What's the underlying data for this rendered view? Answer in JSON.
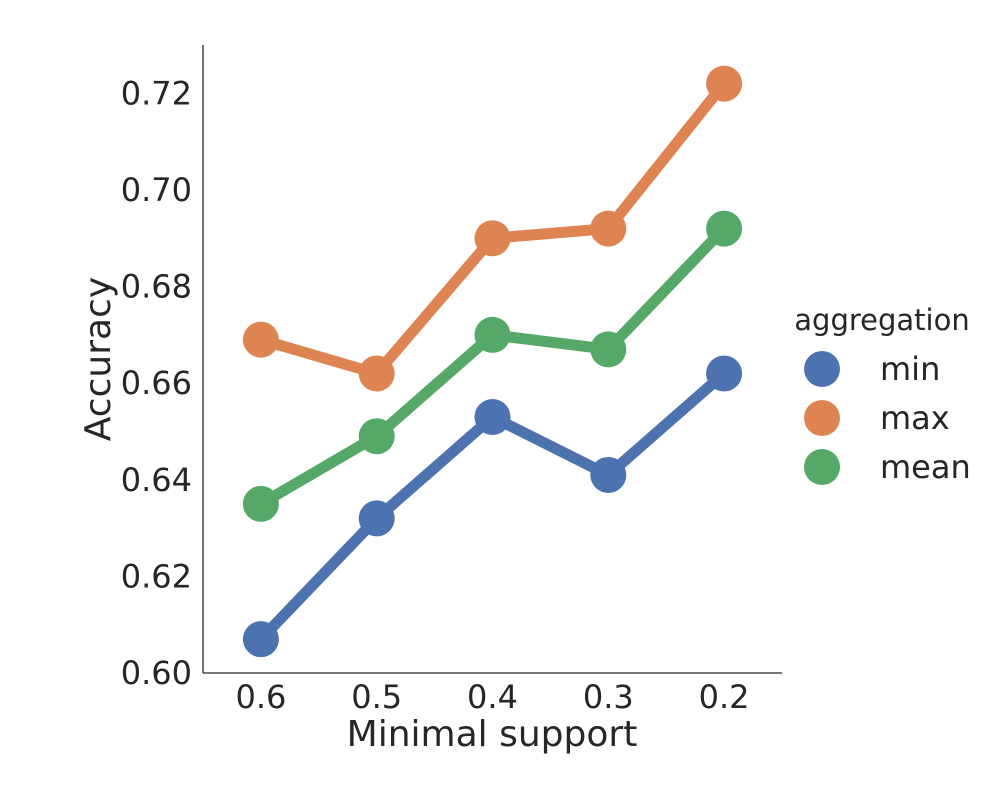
{
  "chart_data": {
    "type": "line",
    "title": "",
    "xlabel": "Minimal support",
    "ylabel": "Accuracy",
    "categories": [
      "0.6",
      "0.5",
      "0.4",
      "0.3",
      "0.2"
    ],
    "ylim": [
      0.6,
      0.73
    ],
    "yticks": [
      "0.60",
      "0.62",
      "0.64",
      "0.66",
      "0.68",
      "0.70",
      "0.72"
    ],
    "grid": false,
    "legend": {
      "title": "aggregation",
      "placement": "right"
    },
    "series": [
      {
        "name": "min",
        "color": "#4c72b0",
        "values": [
          0.607,
          0.632,
          0.653,
          0.641,
          0.662
        ]
      },
      {
        "name": "max",
        "color": "#dd8452",
        "values": [
          0.669,
          0.662,
          0.69,
          0.692,
          0.722
        ]
      },
      {
        "name": "mean",
        "color": "#55a868",
        "values": [
          0.635,
          0.649,
          0.67,
          0.667,
          0.692
        ]
      }
    ]
  }
}
